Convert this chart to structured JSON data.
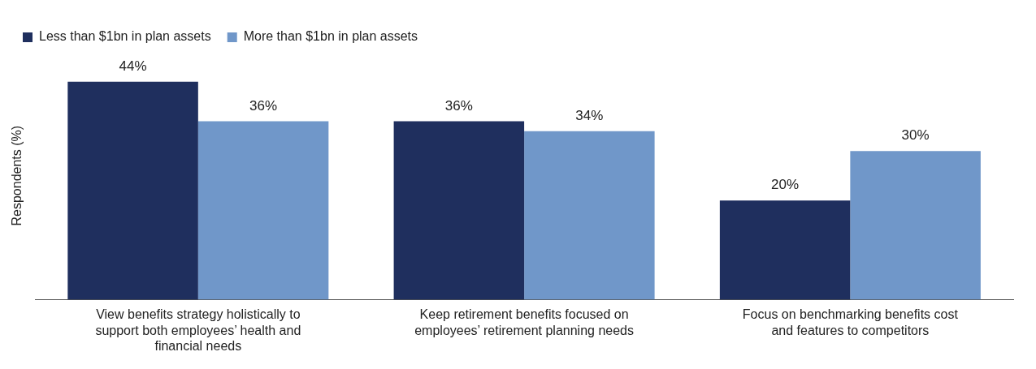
{
  "chart_data": {
    "type": "bar",
    "ylabel": "Respondents (%)",
    "categories": [
      "View benefits strategy holistically to support both employees’ health and financial needs",
      "Keep retirement benefits focused on employees’ retirement planning needs",
      "Focus on benchmarking benefits cost and features to competitors"
    ],
    "series": [
      {
        "name": "Less than $1bn in plan assets",
        "color": "#1f2f5e",
        "values": [
          44,
          36,
          20
        ],
        "value_labels": [
          "44%",
          "36%",
          "20%"
        ]
      },
      {
        "name": "More than $1bn in plan assets",
        "color": "#7097c9",
        "values": [
          36,
          34,
          30
        ],
        "value_labels": [
          "36%",
          "34%",
          "30%"
        ]
      }
    ],
    "legend": "top left",
    "grid": false
  }
}
